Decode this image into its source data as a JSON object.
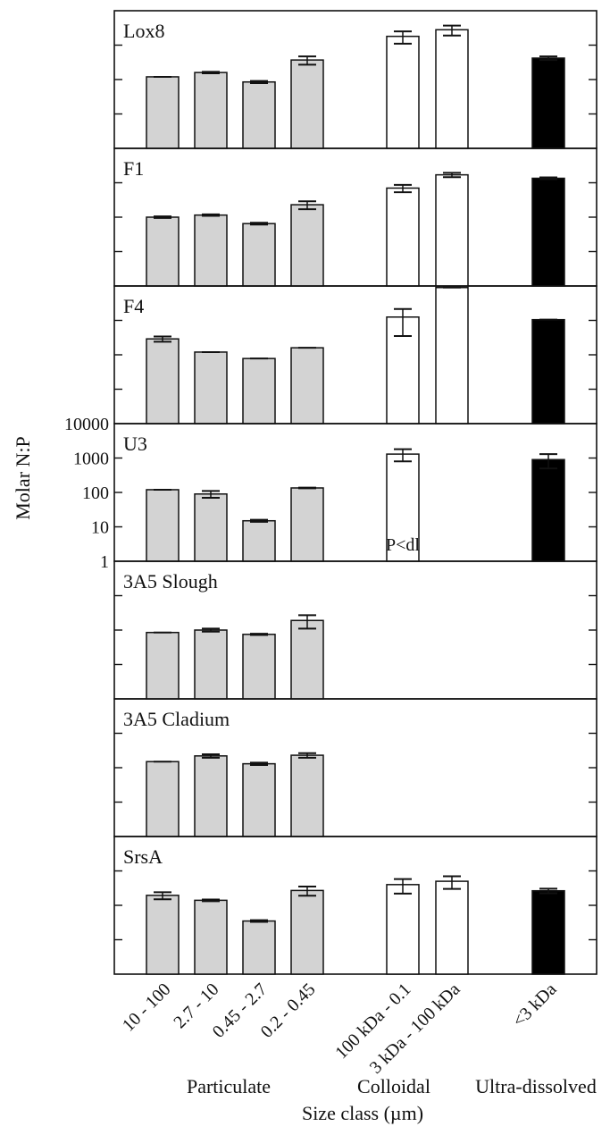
{
  "chart_data": {
    "type": "bar",
    "ylabel": "Molar N:P",
    "xlabel": "Size class (µm)",
    "categories": [
      "10 - 100",
      "2.7 - 10",
      "0.45 - 2.7",
      "0.2 - 0.45",
      "100 kDa - 0.1",
      "3 kDa - 100 kDa",
      "<3 kDa"
    ],
    "groups": [
      {
        "label": "Particulate",
        "categories": [
          "10 - 100",
          "2.7 - 10",
          "0.45 - 2.7",
          "0.2 - 0.45"
        ],
        "color": "#d3d3d3"
      },
      {
        "label": "Colloidal",
        "categories": [
          "100 kDa - 0.1",
          "3 kDa - 100 kDa"
        ],
        "color": "#ffffff"
      },
      {
        "label": "Ultra-dissolved",
        "categories": [
          "<3 kDa"
        ],
        "color": "#000000"
      }
    ],
    "yscale": "log",
    "ylim": [
      1,
      10000
    ],
    "yticks": [
      1,
      10,
      100,
      1000,
      10000
    ],
    "tick_labels_shown_on": "U3",
    "panels": [
      {
        "name": "Lox8",
        "values": [
          120,
          160,
          85,
          370,
          1800,
          2800,
          420
        ],
        "errors": [
          0,
          8,
          6,
          100,
          700,
          900,
          50
        ]
      },
      {
        "name": "F1",
        "values": [
          100,
          115,
          65,
          230,
          700,
          1700,
          1350
        ],
        "errors": [
          5,
          6,
          4,
          60,
          170,
          250,
          80
        ]
      },
      {
        "name": "F4",
        "values": [
          290,
          120,
          78,
          160,
          1250,
          9000,
          1050
        ],
        "errors": [
          50,
          0,
          0,
          0,
          900,
          0,
          0
        ]
      },
      {
        "name": "U3",
        "values": [
          120,
          90,
          15,
          135,
          1300,
          null,
          900
        ],
        "errors": [
          0,
          20,
          1,
          3,
          500,
          null,
          400
        ],
        "annotation": "P<dl"
      },
      {
        "name": "3A5 Slough",
        "values": [
          85,
          100,
          75,
          190,
          null,
          null,
          null
        ],
        "errors": [
          0,
          10,
          3,
          80,
          null,
          null,
          null
        ]
      },
      {
        "name": "3A5 Cladium",
        "values": [
          150,
          220,
          130,
          230,
          null,
          null,
          null
        ],
        "errors": [
          0,
          25,
          10,
          35,
          null,
          null,
          null
        ]
      },
      {
        "name": "SrsA",
        "values": [
          195,
          140,
          35,
          270,
          400,
          500,
          265
        ],
        "errors": [
          45,
          8,
          2,
          80,
          180,
          200,
          40
        ]
      }
    ]
  }
}
